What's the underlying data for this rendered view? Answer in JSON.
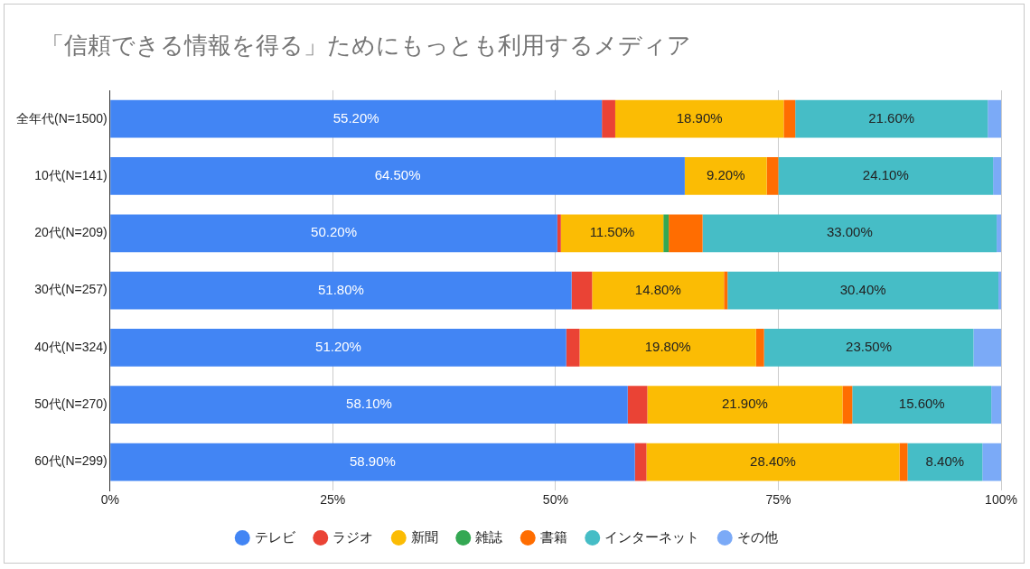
{
  "chart_data": {
    "type": "bar",
    "orientation": "horizontal",
    "stacked": true,
    "title": "「信頼できる情報を得る」ためにもっとも利用するメディア",
    "categories": [
      "全年代(N=1500)",
      "10代(N=141)",
      "20代(N=209)",
      "30代(N=257)",
      "40代(N=324)",
      "50代(N=270)",
      "60代(N=299)"
    ],
    "series": [
      {
        "name": "テレビ",
        "color": "#4285f4",
        "values": [
          55.2,
          64.5,
          50.2,
          51.8,
          51.2,
          58.1,
          58.9
        ],
        "value_labels": [
          "55.20%",
          "64.50%",
          "50.20%",
          "51.80%",
          "51.20%",
          "58.10%",
          "58.90%"
        ]
      },
      {
        "name": "ラジオ",
        "color": "#ea4335",
        "values": [
          1.5,
          0,
          0.4,
          2.3,
          1.5,
          2.2,
          1.3
        ]
      },
      {
        "name": "新聞",
        "color": "#fbbc04",
        "values": [
          18.9,
          9.2,
          11.5,
          14.8,
          19.8,
          21.9,
          28.4
        ],
        "value_labels": [
          "18.90%",
          "9.20%",
          "11.50%",
          "14.80%",
          "19.80%",
          "21.90%",
          "28.40%"
        ]
      },
      {
        "name": "雑誌",
        "color": "#34a853",
        "values": [
          0,
          0,
          0.6,
          0,
          0,
          0,
          0
        ]
      },
      {
        "name": "書籍",
        "color": "#ff6d01",
        "values": [
          1.3,
          1.3,
          3.8,
          0.4,
          0.9,
          1.1,
          0.9
        ]
      },
      {
        "name": "インターネット",
        "color": "#46bdc6",
        "values": [
          21.6,
          24.1,
          33.0,
          30.4,
          23.5,
          15.6,
          8.4
        ],
        "value_labels": [
          "21.60%",
          "24.10%",
          "33.00%",
          "30.40%",
          "23.50%",
          "15.60%",
          "8.40%"
        ]
      },
      {
        "name": "その他",
        "color": "#7baaf7",
        "values": [
          1.5,
          0.9,
          0.5,
          0.3,
          3.1,
          1.1,
          2.1
        ]
      }
    ],
    "xlim": [
      0,
      100
    ],
    "xticks": [
      {
        "value": 0,
        "label": "0%"
      },
      {
        "value": 25,
        "label": "25%"
      },
      {
        "value": 50,
        "label": "50%"
      },
      {
        "value": 75,
        "label": "75%"
      },
      {
        "value": 100,
        "label": "100%"
      }
    ],
    "grid": "x",
    "legend": "bottom"
  }
}
